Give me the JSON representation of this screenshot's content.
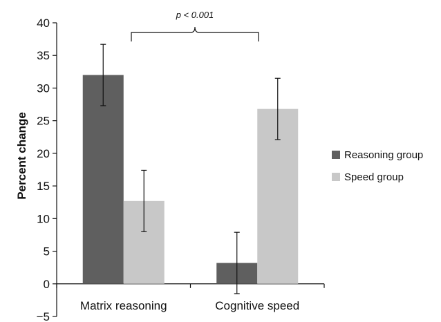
{
  "chart_data": {
    "type": "bar",
    "categories": [
      "Matrix reasoning",
      "Cognitive speed"
    ],
    "series": [
      {
        "name": "Reasoning group",
        "values": [
          32.0,
          3.2
        ],
        "error": [
          4.7,
          4.7
        ],
        "color": "#5f5f5f"
      },
      {
        "name": "Speed group",
        "values": [
          12.7,
          26.8
        ],
        "error": [
          4.7,
          4.7
        ],
        "color": "#c8c8c8"
      }
    ],
    "ylabel": "Percent change",
    "ylim": [
      -5,
      40
    ],
    "yticks": [
      -5,
      0,
      5,
      10,
      15,
      20,
      25,
      30,
      35,
      40
    ],
    "grid": false,
    "legend_position": "right",
    "annotation": {
      "text": "p < 0.001",
      "between": [
        "Matrix reasoning",
        "Cognitive speed"
      ]
    }
  }
}
